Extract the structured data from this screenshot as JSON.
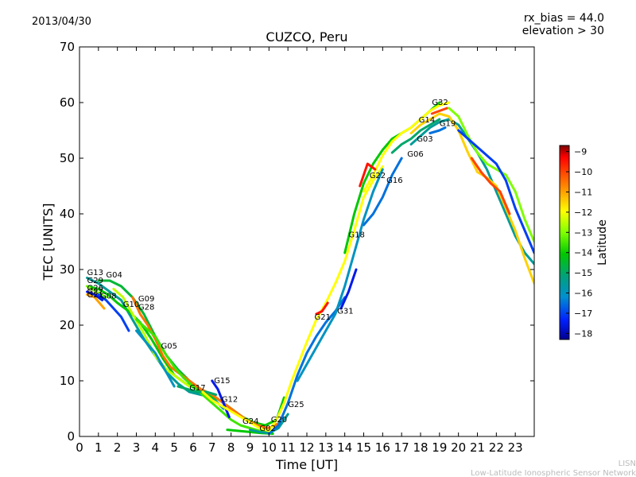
{
  "date_label": "2013/04/30",
  "corner_info": {
    "line1": "rx_bias = 44.0",
    "line2": "elevation > 30"
  },
  "watermark": {
    "line1": "LISN",
    "line2": "Low-Latitude Ionospheric Sensor Network"
  },
  "colors": {
    "background": "#ffffff",
    "axes": "#000000",
    "watermark": "#bbbbbb"
  },
  "chart_data": {
    "type": "line",
    "title": "CUZCO, Peru",
    "xlabel": "Time [UT]",
    "ylabel": "TEC [UNITS]",
    "xlim": [
      0,
      24
    ],
    "ylim": [
      0,
      70
    ],
    "xticks": [
      0,
      1,
      2,
      3,
      4,
      5,
      6,
      7,
      8,
      9,
      10,
      11,
      12,
      13,
      14,
      15,
      16,
      17,
      18,
      19,
      20,
      21,
      22,
      23
    ],
    "yticks": [
      0,
      10,
      20,
      30,
      40,
      50,
      60,
      70
    ],
    "colorbar": {
      "label": "Latitude",
      "range": [
        -18.3,
        -8.7
      ],
      "ticks": [
        -9,
        -10,
        -11,
        -12,
        -13,
        -14,
        -15,
        -16,
        -17,
        -18
      ],
      "tick_labels": [
        "−9",
        "−10",
        "−11",
        "−12",
        "−13",
        "−14",
        "−15",
        "−16",
        "−17",
        "−18"
      ]
    },
    "series": [
      {
        "name": "G13",
        "lat": -15.5,
        "label_at": [
          0.4,
          29.0
        ],
        "x": [
          0.4,
          1.0,
          1.6,
          2.2,
          2.8,
          3.4,
          4.0,
          4.6,
          5.2,
          5.8,
          6.4,
          7.0,
          7.6
        ],
        "y": [
          28.5,
          27.5,
          26.0,
          24.5,
          21.0,
          17.5,
          14.5,
          11.5,
          9.5,
          8.0,
          7.5,
          7.0,
          5.0
        ]
      },
      {
        "name": "G29",
        "lat": -14.0,
        "label_at": [
          0.4,
          27.6
        ],
        "x": [
          0.4,
          1.0,
          1.5,
          2.0,
          2.6,
          3.2,
          3.8,
          4.4,
          5.0,
          5.6,
          6.2,
          6.8,
          7.4,
          8.0,
          8.6,
          9.2,
          9.8,
          10.4,
          10.8
        ],
        "y": [
          27.0,
          26.5,
          25.5,
          24.0,
          22.5,
          20.5,
          17.5,
          14.0,
          11.0,
          9.5,
          8.5,
          7.5,
          6.5,
          5.0,
          3.5,
          2.5,
          2.0,
          3.0,
          7.0
        ]
      },
      {
        "name": "G04",
        "lat": -14.5,
        "label_at": [
          1.4,
          28.6
        ],
        "x": [
          1.0,
          1.6,
          2.2,
          2.8,
          3.4,
          4.0,
          4.6,
          5.2,
          5.8,
          6.4,
          7.0,
          7.6,
          8.2,
          8.8,
          9.4,
          10.0
        ],
        "y": [
          28.0,
          28.0,
          27.0,
          25.0,
          22.0,
          18.0,
          14.5,
          12.0,
          10.0,
          8.5,
          7.5,
          6.0,
          4.5,
          3.0,
          2.0,
          1.0
        ]
      },
      {
        "name": "G26",
        "lat": -13.0,
        "label_at": [
          0.4,
          26.2
        ],
        "x": [
          0.4,
          0.9,
          1.4
        ],
        "y": [
          27.0,
          26.0,
          25.0
        ]
      },
      {
        "name": "G27",
        "lat": -11.0,
        "label_at": [
          0.4,
          25.6
        ],
        "x": [
          0.4,
          0.8,
          1.3
        ],
        "y": [
          25.5,
          25.0,
          23.0
        ]
      },
      {
        "name": "G21",
        "lat": -17.5,
        "label_at": [
          0.4,
          25.0
        ],
        "x": [
          0.4,
          0.8,
          1.2
        ],
        "y": [
          26.0,
          25.5,
          24.5
        ]
      },
      {
        "name": "G08",
        "lat": -17.0,
        "label_at": [
          1.1,
          24.8
        ],
        "x": [
          1.0,
          1.4,
          1.8,
          2.2,
          2.6
        ],
        "y": [
          25.5,
          24.5,
          23.0,
          21.5,
          19.0
        ]
      },
      {
        "name": "G10",
        "lat": -12.5,
        "label_at": [
          2.3,
          23.3
        ],
        "x": [
          1.8,
          2.3,
          2.8,
          3.4,
          4.0,
          4.6,
          5.2,
          5.8
        ],
        "y": [
          26.5,
          25.0,
          22.0,
          18.5,
          14.5,
          12.0,
          10.5,
          9.0
        ]
      },
      {
        "name": "G09",
        "lat": -10.5,
        "label_at": [
          3.1,
          24.3
        ],
        "x": [
          2.8,
          3.2,
          3.6,
          4.0,
          4.4,
          4.8,
          5.2,
          5.6,
          6.0,
          6.4,
          7.0,
          7.6,
          8.2,
          8.8,
          9.4,
          10.0,
          10.6
        ],
        "y": [
          25.0,
          22.0,
          20.0,
          17.5,
          14.5,
          12.5,
          11.5,
          10.5,
          9.5,
          8.5,
          7.5,
          6.0,
          4.5,
          3.0,
          2.0,
          1.5,
          2.5
        ]
      },
      {
        "name": "G28",
        "lat": -13.5,
        "label_at": [
          3.1,
          22.8
        ],
        "x": [
          3.0,
          3.5,
          4.0,
          4.5,
          5.0,
          5.5,
          6.0,
          6.5,
          7.0,
          7.5,
          8.0,
          8.5,
          9.0,
          9.5,
          10.0
        ],
        "y": [
          21.0,
          19.5,
          18.0,
          15.0,
          12.5,
          10.5,
          9.0,
          7.5,
          6.0,
          4.5,
          3.0,
          2.0,
          1.5,
          1.0,
          0.8
        ]
      },
      {
        "name": "G05",
        "lat": -16.0,
        "label_at": [
          4.3,
          15.8
        ],
        "x": [
          3.0,
          3.5,
          4.0,
          4.5,
          5.0
        ],
        "y": [
          19.0,
          17.0,
          15.0,
          12.0,
          9.0
        ]
      },
      {
        "name": "G17",
        "lat": -15.0,
        "label_at": [
          5.8,
          8.3
        ],
        "x": [
          5.2,
          5.7,
          6.2,
          6.7,
          7.2
        ],
        "y": [
          9.0,
          8.5,
          8.0,
          8.0,
          7.5
        ]
      },
      {
        "name": "G15",
        "lat": -17.5,
        "label_at": [
          7.1,
          9.6
        ],
        "x": [
          7.0,
          7.3,
          7.6,
          7.9
        ],
        "y": [
          10.0,
          8.5,
          6.0,
          3.5
        ]
      },
      {
        "name": "G12",
        "lat": -12.0,
        "label_at": [
          7.5,
          6.2
        ],
        "x": [
          6.5,
          7.0,
          7.5,
          8.0,
          8.5,
          9.0,
          9.5,
          10.0
        ],
        "y": [
          8.0,
          6.5,
          5.5,
          4.5,
          3.5,
          2.5,
          1.5,
          1.0
        ]
      },
      {
        "name": "G24",
        "lat": -14.0,
        "label_at": [
          8.6,
          2.3
        ],
        "x": [
          7.8,
          8.4,
          9.0,
          9.6,
          10.2
        ],
        "y": [
          1.2,
          1.0,
          0.8,
          0.6,
          0.5
        ]
      },
      {
        "name": "G02",
        "lat": -15.5,
        "label_at": [
          9.5,
          1.0
        ],
        "x": [
          9.0,
          9.5,
          10.0,
          10.5,
          11.0
        ],
        "y": [
          1.2,
          0.8,
          0.6,
          1.5,
          4.0
        ]
      },
      {
        "name": "G25",
        "lat": -16.5,
        "label_at": [
          11.0,
          5.3
        ],
        "x": [
          10.0,
          10.5,
          11.0,
          11.5,
          12.0,
          12.5,
          13.0,
          13.5,
          14.0
        ],
        "y": [
          0.5,
          2.0,
          6.0,
          11.0,
          15.0,
          18.0,
          20.5,
          22.5,
          25.0
        ]
      },
      {
        "name": "G20",
        "lat": -12.0,
        "label_at": [
          10.1,
          2.6
        ],
        "x": [
          10.0,
          10.4,
          10.8,
          11.2,
          11.6,
          12.0,
          12.5,
          13.0,
          13.5,
          14.0,
          14.5,
          15.0,
          15.5,
          16.0
        ],
        "y": [
          1.0,
          3.0,
          6.0,
          10.0,
          13.5,
          17.0,
          21.0,
          24.0,
          27.5,
          31.5,
          37.0,
          43.0,
          46.0,
          48.5
        ]
      },
      {
        "name": "G31",
        "lat": -16.0,
        "label_at": [
          13.6,
          22.1
        ],
        "x": [
          11.5,
          12.0,
          12.5,
          13.0,
          13.5,
          14.0,
          14.5,
          15.0,
          15.5,
          16.0
        ],
        "y": [
          10.0,
          13.0,
          16.0,
          19.0,
          22.0,
          27.0,
          33.0,
          39.0,
          44.0,
          48.0
        ]
      },
      {
        "name": "G21",
        "lat": -9.5,
        "label_at": [
          12.4,
          21.0
        ],
        "x": [
          12.5,
          12.8,
          13.1
        ],
        "y": [
          22.0,
          22.5,
          24.0
        ]
      },
      {
        "name": "G18",
        "lat": -14.0,
        "label_at": [
          14.2,
          35.8
        ],
        "x": [
          14.0,
          14.5,
          15.0,
          15.5,
          16.0,
          16.5,
          17.0,
          17.5,
          18.0,
          18.5,
          19.0
        ],
        "y": [
          33.0,
          40.0,
          45.5,
          49.0,
          51.5,
          53.5,
          54.5,
          55.5,
          57.0,
          58.5,
          60.0
        ]
      },
      {
        "name": "G22",
        "lat": -12.0,
        "label_at": [
          15.3,
          46.4
        ],
        "x": [
          15.0,
          15.5,
          16.0,
          16.5,
          17.0,
          17.5,
          18.0,
          18.5,
          19.0,
          19.5
        ],
        "y": [
          44.0,
          47.0,
          50.5,
          53.0,
          54.5,
          55.5,
          57.0,
          58.5,
          59.5,
          60.0
        ]
      },
      {
        "name": "G16",
        "lat": -16.5,
        "label_at": [
          16.2,
          45.6
        ],
        "x": [
          15.0,
          15.5,
          16.0,
          16.5,
          17.0
        ],
        "y": [
          38.0,
          40.0,
          43.0,
          47.0,
          50.0
        ]
      },
      {
        "name": "G06",
        "lat": -15.0,
        "label_at": [
          17.3,
          50.3
        ],
        "x": [
          16.5,
          17.0,
          17.5,
          18.0,
          18.5,
          19.0
        ],
        "y": [
          51.0,
          52.5,
          53.5,
          55.0,
          56.0,
          57.0
        ]
      },
      {
        "name": "G03",
        "lat": -15.5,
        "label_at": [
          17.8,
          53.0
        ],
        "x": [
          17.5,
          18.0,
          18.5,
          19.0,
          19.5,
          20.0,
          20.5,
          21.0,
          21.5,
          22.0,
          22.5,
          23.0,
          23.5,
          24.0
        ],
        "y": [
          52.5,
          54.0,
          55.5,
          56.5,
          57.0,
          56.0,
          53.5,
          51.0,
          48.0,
          44.0,
          40.0,
          36.0,
          33.0,
          31.0
        ]
      },
      {
        "name": "G14",
        "lat": -11.5,
        "label_at": [
          17.9,
          56.4
        ],
        "x": [
          17.5,
          18.0,
          18.5,
          19.0,
          19.5,
          20.0,
          20.5,
          21.0,
          21.5,
          22.0,
          22.5,
          23.0,
          23.5,
          24.0
        ],
        "y": [
          54.5,
          56.0,
          57.0,
          58.0,
          57.5,
          55.0,
          51.0,
          47.5,
          46.5,
          45.0,
          41.0,
          37.0,
          32.0,
          27.5
        ]
      },
      {
        "name": "G19",
        "lat": -16.5,
        "label_at": [
          19.0,
          55.8
        ],
        "x": [
          18.5,
          19.0,
          19.3
        ],
        "y": [
          54.5,
          55.0,
          55.5
        ]
      },
      {
        "name": "G32",
        "lat": -10.0,
        "label_at": [
          18.6,
          59.6
        ],
        "x": [
          18.6,
          19.0,
          19.4
        ],
        "y": [
          58.0,
          58.5,
          59.0
        ]
      },
      {
        "name": "",
        "lat": -13.0,
        "label_at": null,
        "x": [
          19.5,
          20.0,
          20.5,
          21.0,
          21.5,
          22.0,
          22.5,
          23.0,
          23.5,
          24.0
        ],
        "y": [
          59.0,
          57.5,
          54.0,
          51.0,
          49.0,
          48.0,
          47.0,
          44.0,
          39.0,
          35.0
        ]
      },
      {
        "name": "",
        "lat": -17.0,
        "label_at": null,
        "x": [
          20.0,
          20.5,
          21.0,
          21.5,
          22.0,
          22.5,
          23.0,
          23.5,
          24.0
        ],
        "y": [
          55.0,
          53.5,
          52.0,
          50.5,
          49.0,
          46.0,
          41.0,
          37.0,
          33.0
        ]
      },
      {
        "name": "",
        "lat": -10.0,
        "label_at": null,
        "x": [
          20.7,
          21.2,
          21.7,
          22.2,
          22.7
        ],
        "y": [
          50.0,
          47.5,
          45.5,
          44.0,
          40.0
        ]
      },
      {
        "name": "",
        "lat": -17.5,
        "label_at": null,
        "x": [
          13.8,
          14.2,
          14.6
        ],
        "y": [
          23.0,
          26.0,
          30.0
        ]
      },
      {
        "name": "",
        "lat": -9.5,
        "label_at": null,
        "x": [
          14.8,
          15.2,
          15.6
        ],
        "y": [
          45.0,
          49.0,
          48.0
        ]
      }
    ]
  }
}
